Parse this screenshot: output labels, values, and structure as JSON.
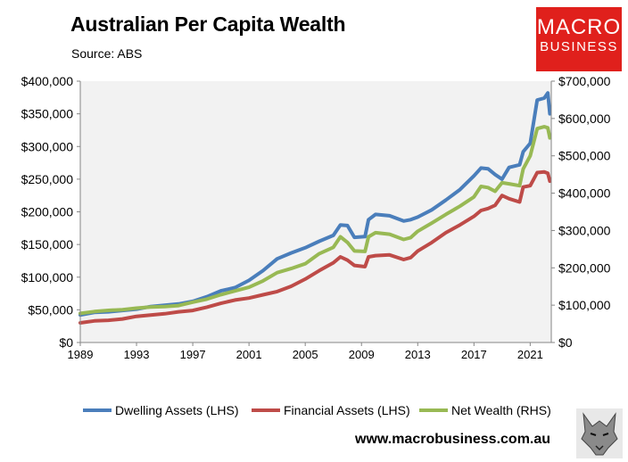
{
  "header": {
    "title": "Australian Per Capita Wealth",
    "subtitle": "Source: ABS"
  },
  "logo": {
    "line1": "MACRO",
    "line2": "BUSINESS"
  },
  "footer": {
    "url": "www.macrobusiness.com.au"
  },
  "colors": {
    "dwelling": "#4a7ebb",
    "financial": "#be4b48",
    "net": "#98b954",
    "plot_bg": "#f2f2f2",
    "logo_bg": "#e0201c"
  },
  "chart_data": {
    "type": "line",
    "x_ticks": [
      "1989",
      "1993",
      "1997",
      "2001",
      "2005",
      "2009",
      "2013",
      "2017",
      "2021"
    ],
    "y_left_ticks": [
      "$0",
      "$50,000",
      "$100,000",
      "$150,000",
      "$200,000",
      "$250,000",
      "$300,000",
      "$350,000",
      "$400,000"
    ],
    "y_right_ticks": [
      "$0",
      "$100,000",
      "$200,000",
      "$300,000",
      "$400,000",
      "$500,000",
      "$600,000",
      "$700,000"
    ],
    "ylim_left": [
      0,
      400000
    ],
    "ylim_right": [
      0,
      700000
    ],
    "xlim": [
      1989,
      2022.5
    ],
    "legend_position": "bottom",
    "grid": false,
    "series": [
      {
        "name": "Dwelling Assets (LHS)",
        "axis": "left",
        "color_key": "dwelling",
        "points": [
          [
            1989,
            42000
          ],
          [
            1990,
            46000
          ],
          [
            1991,
            47000
          ],
          [
            1992,
            49000
          ],
          [
            1993,
            51000
          ],
          [
            1994,
            55000
          ],
          [
            1995,
            57000
          ],
          [
            1996,
            59000
          ],
          [
            1997,
            63000
          ],
          [
            1998,
            70000
          ],
          [
            1999,
            79000
          ],
          [
            2000,
            84000
          ],
          [
            2001,
            95000
          ],
          [
            2002,
            110000
          ],
          [
            2003,
            128000
          ],
          [
            2004,
            137000
          ],
          [
            2005,
            145000
          ],
          [
            2006,
            155000
          ],
          [
            2007,
            164000
          ],
          [
            2007.5,
            180000
          ],
          [
            2008,
            179000
          ],
          [
            2008.5,
            161000
          ],
          [
            2009.25,
            162000
          ],
          [
            2009.5,
            188000
          ],
          [
            2010,
            196000
          ],
          [
            2011,
            194000
          ],
          [
            2012,
            186000
          ],
          [
            2012.5,
            188000
          ],
          [
            2013,
            192000
          ],
          [
            2014,
            203000
          ],
          [
            2015,
            218000
          ],
          [
            2016,
            234000
          ],
          [
            2017,
            255000
          ],
          [
            2017.5,
            267000
          ],
          [
            2018,
            266000
          ],
          [
            2018.5,
            257000
          ],
          [
            2019,
            250000
          ],
          [
            2019.5,
            268000
          ],
          [
            2020.25,
            272000
          ],
          [
            2020.5,
            292000
          ],
          [
            2021,
            305000
          ],
          [
            2021.5,
            371000
          ],
          [
            2022,
            374000
          ],
          [
            2022.25,
            382000
          ],
          [
            2022.4,
            350000
          ]
        ]
      },
      {
        "name": "Financial Assets (LHS)",
        "axis": "left",
        "color_key": "financial",
        "points": [
          [
            1989,
            30000
          ],
          [
            1990,
            33000
          ],
          [
            1991,
            34000
          ],
          [
            1992,
            36000
          ],
          [
            1993,
            40000
          ],
          [
            1994,
            42000
          ],
          [
            1995,
            44000
          ],
          [
            1996,
            47000
          ],
          [
            1997,
            49000
          ],
          [
            1998,
            54000
          ],
          [
            1999,
            60000
          ],
          [
            2000,
            65000
          ],
          [
            2001,
            68000
          ],
          [
            2002,
            73000
          ],
          [
            2003,
            78000
          ],
          [
            2004,
            86000
          ],
          [
            2005,
            97000
          ],
          [
            2006,
            110000
          ],
          [
            2007,
            122000
          ],
          [
            2007.5,
            131000
          ],
          [
            2008,
            126000
          ],
          [
            2008.5,
            118000
          ],
          [
            2009.25,
            116000
          ],
          [
            2009.5,
            131000
          ],
          [
            2010,
            133000
          ],
          [
            2011,
            134000
          ],
          [
            2012,
            127000
          ],
          [
            2012.5,
            130000
          ],
          [
            2013,
            140000
          ],
          [
            2014,
            153000
          ],
          [
            2015,
            168000
          ],
          [
            2016,
            180000
          ],
          [
            2017,
            193000
          ],
          [
            2017.5,
            202000
          ],
          [
            2018,
            205000
          ],
          [
            2018.5,
            210000
          ],
          [
            2019,
            225000
          ],
          [
            2019.5,
            220000
          ],
          [
            2020.25,
            215000
          ],
          [
            2020.5,
            238000
          ],
          [
            2021,
            240000
          ],
          [
            2021.5,
            260000
          ],
          [
            2022,
            261000
          ],
          [
            2022.25,
            259000
          ],
          [
            2022.4,
            247000
          ]
        ]
      },
      {
        "name": "Net Wealth (RHS)",
        "axis": "right",
        "color_key": "net",
        "points": [
          [
            1989,
            78000
          ],
          [
            1990,
            83000
          ],
          [
            1991,
            86000
          ],
          [
            1992,
            88000
          ],
          [
            1993,
            92000
          ],
          [
            1994,
            95000
          ],
          [
            1995,
            96000
          ],
          [
            1996,
            99000
          ],
          [
            1997,
            108000
          ],
          [
            1998,
            116000
          ],
          [
            1999,
            128000
          ],
          [
            2000,
            138000
          ],
          [
            2001,
            148000
          ],
          [
            2002,
            165000
          ],
          [
            2003,
            187000
          ],
          [
            2004,
            198000
          ],
          [
            2005,
            211000
          ],
          [
            2006,
            238000
          ],
          [
            2007,
            255000
          ],
          [
            2007.5,
            283000
          ],
          [
            2008,
            268000
          ],
          [
            2008.5,
            245000
          ],
          [
            2009.25,
            244000
          ],
          [
            2009.5,
            283000
          ],
          [
            2010,
            294000
          ],
          [
            2011,
            290000
          ],
          [
            2012,
            276000
          ],
          [
            2012.5,
            281000
          ],
          [
            2013,
            298000
          ],
          [
            2014,
            320000
          ],
          [
            2015,
            343000
          ],
          [
            2016,
            365000
          ],
          [
            2017,
            390000
          ],
          [
            2017.5,
            418000
          ],
          [
            2018,
            415000
          ],
          [
            2018.5,
            405000
          ],
          [
            2019,
            428000
          ],
          [
            2019.5,
            425000
          ],
          [
            2020.25,
            420000
          ],
          [
            2020.5,
            465000
          ],
          [
            2021,
            500000
          ],
          [
            2021.5,
            573000
          ],
          [
            2022,
            578000
          ],
          [
            2022.25,
            575000
          ],
          [
            2022.4,
            548000
          ]
        ]
      }
    ]
  }
}
